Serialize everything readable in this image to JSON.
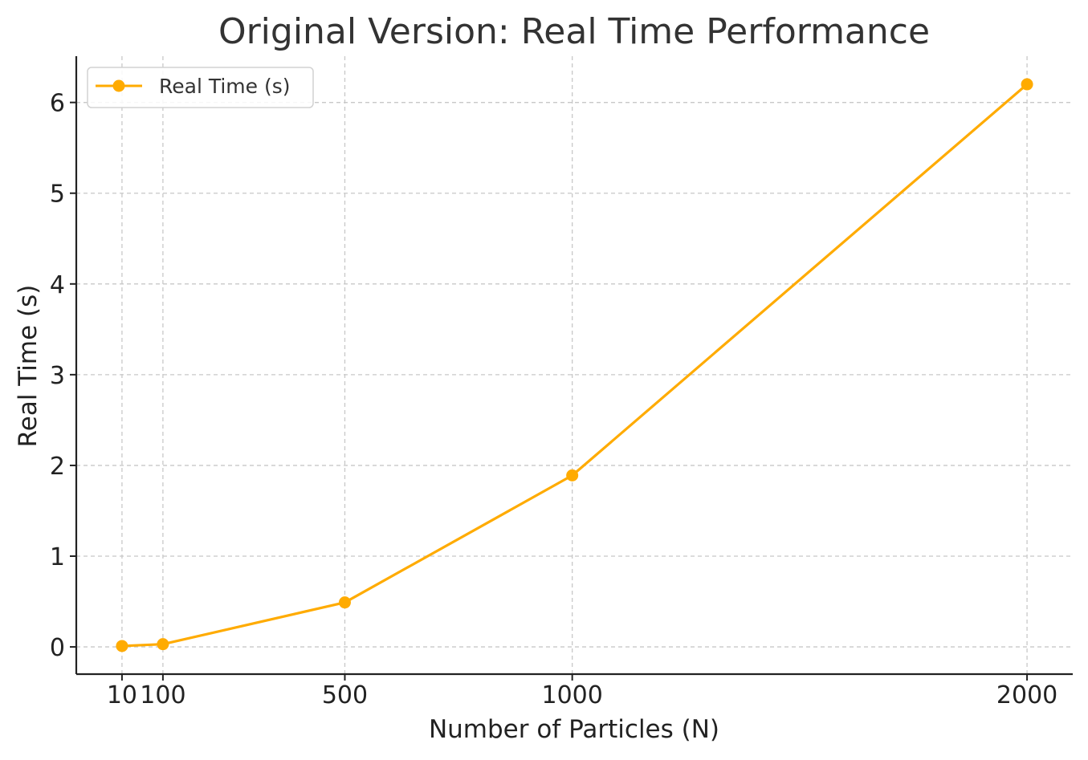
{
  "chart_data": {
    "type": "line",
    "title": "Original Version: Real Time Performance",
    "xlabel": "Number of Particles (N)",
    "ylabel": "Real Time (s)",
    "x": [
      10,
      100,
      500,
      1000,
      2000
    ],
    "series": [
      {
        "name": "Real Time (s)",
        "values": [
          0.01,
          0.03,
          0.49,
          1.89,
          6.2
        ],
        "color": "#ffab00",
        "marker": "circle"
      }
    ],
    "xticks": [
      10,
      100,
      500,
      1000,
      2000
    ],
    "xtick_labels": [
      "10",
      "100",
      "500",
      "1000",
      "2000"
    ],
    "yticks": [
      0,
      1,
      2,
      3,
      4,
      5,
      6
    ],
    "ytick_labels": [
      "0",
      "1",
      "2",
      "3",
      "4",
      "5",
      "6"
    ],
    "xlim": [
      -90.5,
      2100.5
    ],
    "ylim": [
      -0.3,
      6.51
    ],
    "grid": true,
    "grid_style": "dashed",
    "legend_position": "top-left"
  }
}
